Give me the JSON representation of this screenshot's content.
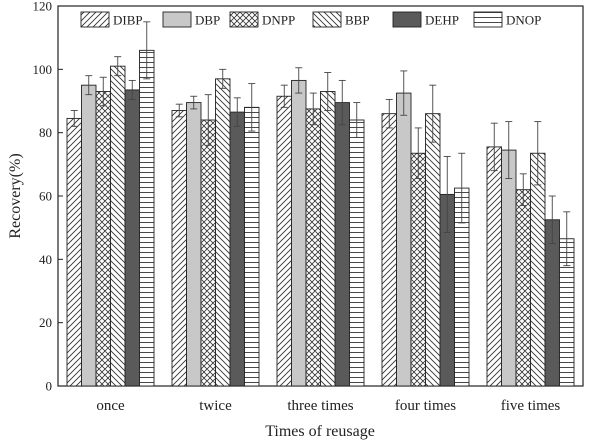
{
  "chart_data": {
    "type": "bar",
    "xlabel": "Times of reusage",
    "ylabel": "Recovery(%)",
    "ylim": [
      0,
      120
    ],
    "yticks": [
      0,
      20,
      40,
      60,
      80,
      100,
      120
    ],
    "grid": false,
    "legend_position": "top",
    "categories": [
      "once",
      "twice",
      "three times",
      "four times",
      "five times"
    ],
    "series": [
      {
        "name": "DIBP",
        "fill": "#ffffff",
        "pattern": "diag-up",
        "values": [
          84.5,
          87.0,
          91.5,
          86.0,
          75.5
        ],
        "errors": [
          2.5,
          2.0,
          3.5,
          4.5,
          7.5
        ]
      },
      {
        "name": "DBP",
        "fill": "#c8c8c8",
        "pattern": "none",
        "values": [
          95.0,
          89.5,
          96.5,
          92.5,
          74.5
        ],
        "errors": [
          3.0,
          2.0,
          4.0,
          7.0,
          9.0
        ]
      },
      {
        "name": "DNPP",
        "fill": "#ffffff",
        "pattern": "cross",
        "values": [
          93.0,
          84.0,
          87.5,
          73.5,
          62.0
        ],
        "errors": [
          4.5,
          8.0,
          5.0,
          8.0,
          5.0
        ]
      },
      {
        "name": "BBP",
        "fill": "#ffffff",
        "pattern": "diag-down",
        "values": [
          101.0,
          97.0,
          93.0,
          86.0,
          73.5
        ],
        "errors": [
          3.0,
          3.0,
          6.0,
          9.0,
          10.0
        ]
      },
      {
        "name": "DEHP",
        "fill": "#5a5a5a",
        "pattern": "none",
        "values": [
          93.5,
          86.5,
          89.5,
          60.5,
          52.5
        ],
        "errors": [
          3.0,
          4.5,
          7.0,
          12.0,
          7.5
        ]
      },
      {
        "name": "DNOP",
        "fill": "#ffffff",
        "pattern": "horizontal",
        "values": [
          106.0,
          88.0,
          84.0,
          62.5,
          46.5
        ],
        "errors": [
          9.0,
          7.5,
          5.5,
          11.0,
          8.5
        ]
      }
    ]
  }
}
